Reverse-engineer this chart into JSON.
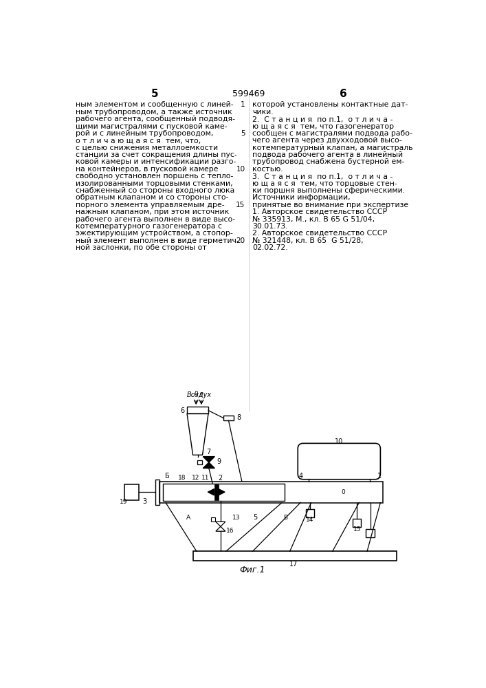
{
  "page_number_left": "5",
  "page_number_center": "599469",
  "page_number_right": "6",
  "left_column_text": [
    "ным элементом и сообщенную с линей-",
    "ным трубопроводом, а также источник",
    "рабочего агента, сообщенный подводя-",
    "щими магистралями с пусковой каме-",
    "рой и с линейным трубопроводом,",
    "о т л и ч а ю щ а я с я  тем, что,",
    "с целью снижения металлоемкости",
    "станции за счет сокращения длины пус-",
    "ковой камеры и интенсификации разго-",
    "на контейнеров, в пусковой камере",
    "свободно установлен поршень с тепло-",
    "изолированными торцовыми стенками,",
    "снабженный со стороны входного люка",
    "обратным клапаном и со стороны сто-",
    "порного элемента управляемым дре-",
    "нажным клапаном, при этом источник",
    "рабочего агента выполнен в виде высо-",
    "котемпературного газогенератора с",
    "эжектирующим устройством, а стопор-",
    "ный элемент выполнен в виде герметич-",
    "ной заслонки, по обе стороны от"
  ],
  "right_column_text": [
    "которой установлены контактные дат-",
    "чики.",
    "2.  С т а н ц и я  по п.1,  о т л и ч а -",
    "ю щ а я с я  тем, что газогенератор",
    "сообщен с магистралями подвода рабо-",
    "чего агента через двухходовой высо-",
    "котемпературный клапан, а магистраль",
    "подвода рабочего агента в линейный",
    "трубопровод снабжена бустерной ем-",
    "костью.",
    "3.  С т а н ц и я  по п.1,  о т л и ч а -",
    "ю щ а я с я  тем, что торцовые стен-",
    "ки поршня выполнены сферическими.",
    "Источники информации,",
    "принятые во внимание при экспертизе",
    "1. Авторское свидетельство СССР",
    "№ 335913, М., кл. В 65 G 51/04,",
    "30.01.73.",
    "2. Авторское свидетельство СССР",
    "№ 321448, кл. В 65  G 51/28,",
    "02.02.72."
  ],
  "line_num_indices": [
    0,
    4,
    9,
    14,
    19
  ],
  "line_num_labels": [
    "1",
    "5",
    "10",
    "15",
    "20"
  ],
  "figure_caption": "Фиг.1",
  "bg_color": "#ffffff",
  "text_color": "#000000"
}
